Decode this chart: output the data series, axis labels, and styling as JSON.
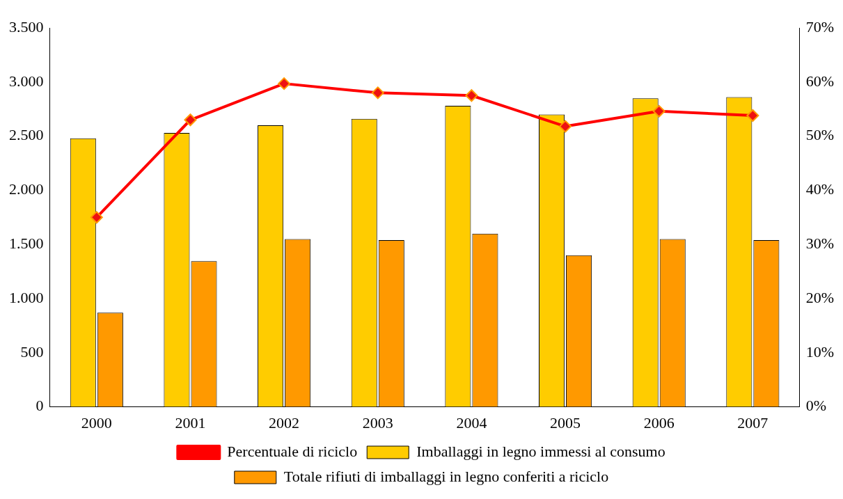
{
  "chart_data": {
    "type": "bar",
    "categories": [
      "2000",
      "2001",
      "2002",
      "2003",
      "2004",
      "2005",
      "2006",
      "2007"
    ],
    "series": [
      {
        "name": "Imballaggi in legno immessi al consumo",
        "color": "#ffcc00",
        "values": [
          2480,
          2530,
          2600,
          2660,
          2780,
          2700,
          2850,
          2860
        ]
      },
      {
        "name": "Totale rifiuti di imballaggi in legno conferiti a riciclo",
        "color": "#ff9900",
        "values": [
          870,
          1345,
          1550,
          1540,
          1600,
          1400,
          1550,
          1540
        ]
      },
      {
        "name": "Percentuale di riciclo",
        "type": "line",
        "axis": "y2",
        "color": "#ff0000",
        "marker": "diamond",
        "values": [
          35,
          53,
          59.7,
          58,
          57.5,
          51.8,
          54.6,
          53.8
        ]
      }
    ],
    "ylim": [
      0,
      3500
    ],
    "yticks": [
      0,
      500,
      {
        "value": 1000,
        "label": "1.000"
      },
      {
        "value": 1500,
        "label": "1.500"
      },
      {
        "value": 2000,
        "label": "2.000"
      },
      {
        "value": 2500,
        "label": "2.500"
      },
      {
        "value": 3000,
        "label": "3.000"
      },
      {
        "value": 3500,
        "label": "3.500"
      }
    ],
    "y2lim": [
      0,
      70
    ],
    "y2ticks": [
      {
        "value": 0,
        "label": "0%"
      },
      {
        "value": 10,
        "label": "10%"
      },
      {
        "value": 20,
        "label": "20%"
      },
      {
        "value": 30,
        "label": "30%"
      },
      {
        "value": 40,
        "label": "40%"
      },
      {
        "value": 50,
        "label": "50%"
      },
      {
        "value": 60,
        "label": "60%"
      },
      {
        "value": 70,
        "label": "70%"
      }
    ],
    "grid": false,
    "legend": "bottom"
  }
}
